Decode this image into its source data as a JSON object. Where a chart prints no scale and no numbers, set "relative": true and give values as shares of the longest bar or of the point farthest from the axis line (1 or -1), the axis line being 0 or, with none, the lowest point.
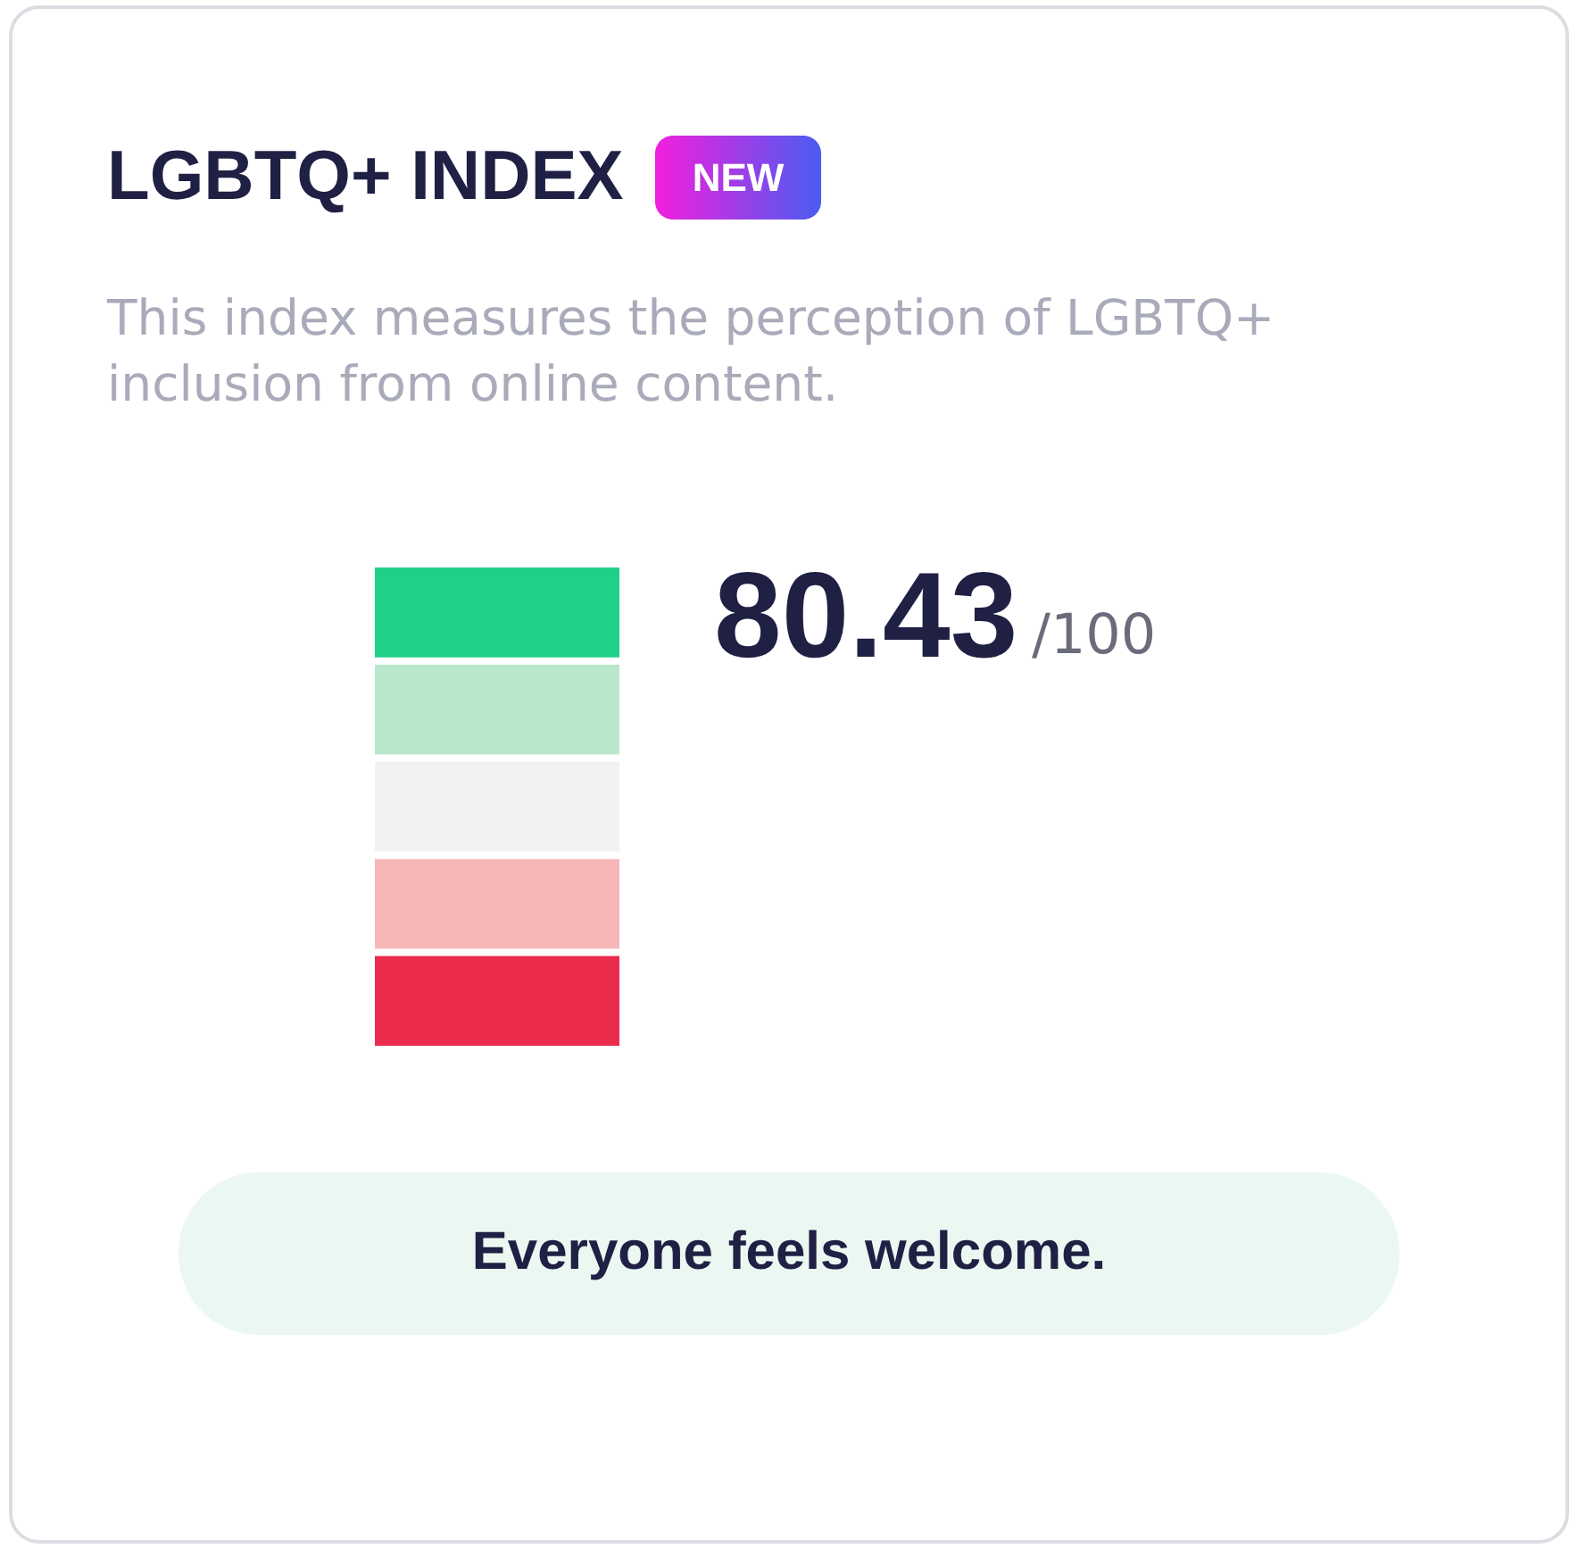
{
  "chart_data": {
    "type": "bar",
    "title": "LGBTQ+ INDEX",
    "subtitle": "This index measures the perception of LGBTQ+ inclusion from online content.",
    "stacked": true,
    "relative": true,
    "categories": [
      null
    ],
    "series": [
      {
        "color": "#eb2c4c",
        "values": [
          0.2
        ]
      },
      {
        "color": "#f7b7b8",
        "values": [
          0.2
        ]
      },
      {
        "color": "#f2f2f2",
        "values": [
          0.2
        ]
      },
      {
        "color": "#b9e7cc",
        "values": [
          0.2
        ]
      },
      {
        "color": "#1fd187",
        "values": [
          0.2
        ]
      }
    ],
    "annotations": [
      "NEW",
      "80.43",
      "/100",
      "Everyone feels welcome."
    ]
  }
}
